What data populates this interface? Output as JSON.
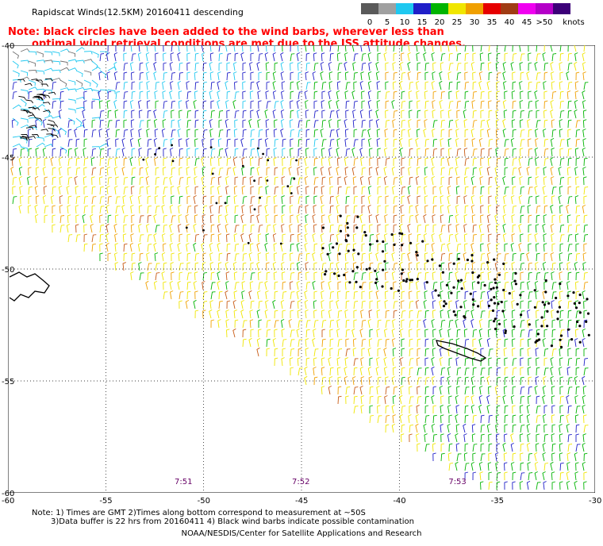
{
  "title": "Rapidscat Winds(12.5KM) 20160411 descending",
  "note": {
    "line1": "Note: black circles have been added to the wind barbs, wherever less than",
    "line2": "optimal wind retrieval conditions are met due to the ISS attitude changes."
  },
  "legend": {
    "unit": "knots",
    "bins": [
      {
        "label": "0",
        "color": "#5a5a5a"
      },
      {
        "label": "5",
        "color": "#a0a0a0"
      },
      {
        "label": "10",
        "color": "#1fc8f0"
      },
      {
        "label": "15",
        "color": "#1f1fc8"
      },
      {
        "label": "20",
        "color": "#00b400"
      },
      {
        "label": "25",
        "color": "#f0e600"
      },
      {
        "label": "30",
        "color": "#f0a000"
      },
      {
        "label": "35",
        "color": "#e60000"
      },
      {
        "label": "40",
        "color": "#a03c14"
      },
      {
        "label": "45",
        "color": "#f000f0"
      },
      {
        "label": ">50",
        "color": "#b400c8"
      },
      {
        "label": "",
        "color": "#3c0078"
      }
    ]
  },
  "map": {
    "lon_range": [
      -60,
      -30
    ],
    "lat_range": [
      -60,
      -40
    ],
    "lon_ticks": [
      "-60",
      "-55",
      "-50",
      "-45",
      "-40",
      "-35",
      "-30"
    ],
    "lat_ticks": [
      "-40",
      "-45",
      "-50",
      "-55",
      "-60"
    ],
    "grid": "dotted",
    "times": [
      {
        "label": "7:51",
        "lon": -51
      },
      {
        "label": "7:52",
        "lon": -45
      },
      {
        "label": "7:53",
        "lon": -37
      }
    ],
    "regions": [
      {
        "name": "cyan",
        "color": "#1fc8f0"
      },
      {
        "name": "blue",
        "color": "#1f1fc8"
      },
      {
        "name": "green",
        "color": "#00b400"
      },
      {
        "name": "yellow",
        "color": "#f0e600"
      },
      {
        "name": "orange",
        "color": "#f0a000"
      },
      {
        "name": "brown",
        "color": "#c85a14"
      },
      {
        "name": "gray",
        "color": "#707070"
      }
    ]
  },
  "footer": {
    "line1": "Note: 1) Times are GMT 2)Times along bottom correspond to measurement at ~50S",
    "line2": "3)Data buffer is 22 hrs from 20160411 4) Black wind barbs indicate possible contamination",
    "credit": "NOAA/NESDIS/Center for Satellite Applications and Research"
  }
}
